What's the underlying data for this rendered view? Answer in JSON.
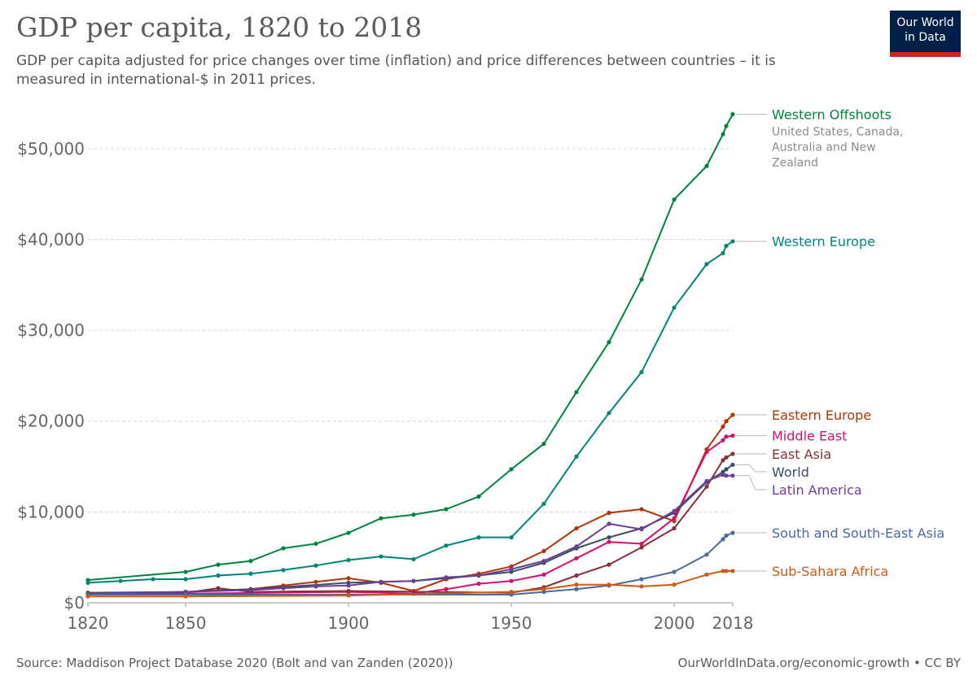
{
  "header": {
    "title": "GDP per capita, 1820 to 2018",
    "subtitle": "GDP per capita adjusted for price changes over time (inflation) and price differences between countries – it is measured in international-$ in 2011 prices."
  },
  "logo": {
    "line1": "Our World",
    "line2": "in Data",
    "colors": {
      "background": "#002147",
      "accent": "#ce261e"
    }
  },
  "footer": {
    "source": "Source: Maddison Project Database 2020 (Bolt and van Zanden (2020))",
    "credit": "OurWorldInData.org/economic-growth • CC BY"
  },
  "chart_data": {
    "type": "line",
    "title": "GDP per capita, 1820 to 2018",
    "xlabel": "",
    "ylabel": "",
    "xlim": [
      1820,
      2018
    ],
    "ylim": [
      0,
      55000
    ],
    "x_ticks": [
      1820,
      1850,
      1900,
      1950,
      2000,
      2018
    ],
    "x_tick_labels": [
      "1820",
      "1850",
      "1900",
      "1950",
      "2000",
      "2018"
    ],
    "y_ticks": [
      0,
      10000,
      20000,
      30000,
      40000,
      50000
    ],
    "y_tick_labels": [
      "$0",
      "$10,000",
      "$20,000",
      "$30,000",
      "$40,000",
      "$50,000"
    ],
    "grid": "horizontal dashed",
    "legend": "right (line-end labels)",
    "series": [
      {
        "name": "Western Offshoots",
        "note": "United States, Canada, Australia and New Zealand",
        "color": "#00843d",
        "x": [
          1820,
          1850,
          1860,
          1870,
          1880,
          1890,
          1900,
          1910,
          1920,
          1930,
          1940,
          1950,
          1960,
          1970,
          1980,
          1990,
          2000,
          2010,
          2015,
          2016,
          2018
        ],
        "y": [
          2500,
          3400,
          4200,
          4600,
          6000,
          6500,
          7700,
          9300,
          9700,
          10300,
          11700,
          14700,
          17500,
          23200,
          28700,
          35600,
          44400,
          48100,
          51600,
          52500,
          53800
        ]
      },
      {
        "name": "Western Europe",
        "color": "#00857a",
        "x": [
          1820,
          1830,
          1840,
          1850,
          1860,
          1870,
          1880,
          1890,
          1900,
          1910,
          1920,
          1930,
          1940,
          1950,
          1960,
          1970,
          1980,
          1990,
          2000,
          2010,
          2015,
          2016,
          2018
        ],
        "y": [
          2200,
          2400,
          2600,
          2600,
          3000,
          3200,
          3600,
          4100,
          4700,
          5100,
          4800,
          6300,
          7200,
          7200,
          10900,
          16100,
          20900,
          25400,
          32500,
          37300,
          38500,
          39300,
          39800
        ]
      },
      {
        "name": "Eastern Europe",
        "color": "#b13507",
        "x": [
          1820,
          1850,
          1870,
          1880,
          1890,
          1900,
          1910,
          1920,
          1930,
          1940,
          1950,
          1960,
          1970,
          1980,
          1990,
          2000,
          2010,
          2015,
          2016,
          2018
        ],
        "y": [
          1000,
          1200,
          1500,
          1900,
          2300,
          2700,
          2200,
          1300,
          2600,
          3200,
          4000,
          5700,
          8200,
          9900,
          10300,
          9000,
          16900,
          19400,
          20000,
          20700
        ]
      },
      {
        "name": "Middle East",
        "color": "#d6106f",
        "x": [
          1820,
          1850,
          1900,
          1920,
          1930,
          1940,
          1950,
          1960,
          1970,
          1980,
          1990,
          2000,
          2010,
          2015,
          2016,
          2018
        ],
        "y": [
          1000,
          1000,
          1200,
          1000,
          1500,
          2100,
          2400,
          3100,
          4900,
          6700,
          6500,
          9300,
          16600,
          17900,
          18300,
          18400
        ]
      },
      {
        "name": "East Asia",
        "color": "#883039",
        "x": [
          1820,
          1850,
          1860,
          1870,
          1900,
          1950,
          1960,
          1970,
          1980,
          1990,
          2000,
          2010,
          2015,
          2016,
          2018
        ],
        "y": [
          1100,
          1100,
          1600,
          1200,
          1300,
          1100,
          1700,
          3000,
          4200,
          6100,
          8200,
          12800,
          15700,
          16000,
          16400
        ]
      },
      {
        "name": "World",
        "color": "#3c4e66",
        "x": [
          1820,
          1850,
          1870,
          1900,
          1910,
          1920,
          1930,
          1940,
          1950,
          1960,
          1970,
          1980,
          1990,
          2000,
          2010,
          2015,
          2016,
          2018
        ],
        "y": [
          1100,
          1200,
          1500,
          2200,
          2300,
          2400,
          2700,
          3000,
          3400,
          4400,
          6000,
          7200,
          8200,
          9900,
          13300,
          14400,
          14700,
          15200
        ]
      },
      {
        "name": "Latin America",
        "color": "#6d3e91",
        "x": [
          1820,
          1850,
          1870,
          1880,
          1890,
          1900,
          1910,
          1920,
          1930,
          1940,
          1950,
          1960,
          1970,
          1980,
          1990,
          2000,
          2010,
          2015,
          2016,
          2018
        ],
        "y": [
          1000,
          1200,
          1400,
          1600,
          1800,
          1900,
          2300,
          2400,
          2800,
          3000,
          3700,
          4600,
          6200,
          8700,
          8100,
          10100,
          13400,
          14100,
          14000,
          14000
        ]
      },
      {
        "name": "South and South-East Asia",
        "color": "#4c6a9c",
        "x": [
          1820,
          1850,
          1900,
          1950,
          1960,
          1970,
          1980,
          1990,
          2000,
          2010,
          2015,
          2016,
          2018
        ],
        "y": [
          900,
          900,
          900,
          900,
          1200,
          1500,
          1900,
          2600,
          3400,
          5300,
          7000,
          7400,
          7700
        ]
      },
      {
        "name": "Sub-Sahara Africa",
        "color": "#cf5817",
        "x": [
          1820,
          1850,
          1900,
          1950,
          1960,
          1970,
          1980,
          1990,
          2000,
          2010,
          2015,
          2016,
          2018
        ],
        "y": [
          700,
          700,
          800,
          1200,
          1500,
          2000,
          2000,
          1800,
          2000,
          3100,
          3500,
          3500,
          3500
        ]
      }
    ]
  }
}
